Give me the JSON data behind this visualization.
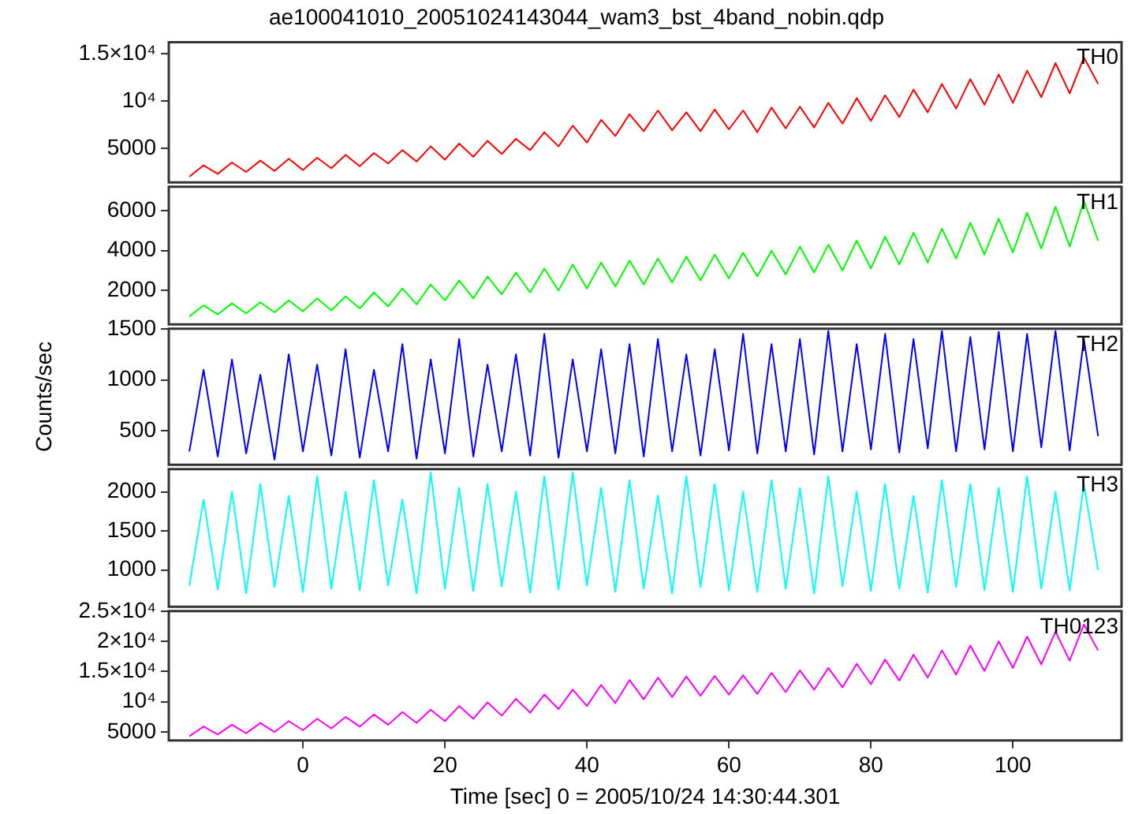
{
  "chart_data": [
    {
      "type": "line",
      "title": "ae100041010_20051024143044_wam3_bst_4band_nobin.qdp",
      "marker": "none",
      "tick_labels": "y",
      "xlim": [
        -18.9,
        115.3
      ],
      "xticks": [
        0,
        20,
        40,
        60,
        80,
        100
      ],
      "ylim": [
        1400,
        16200
      ],
      "yticks": [
        5000,
        {
          "value": 10000,
          "label": "10⁴"
        },
        {
          "value": 15000,
          "label": "1.5×10⁴"
        }
      ],
      "x": [
        -16,
        -14,
        -12,
        -10,
        -8,
        -6,
        -4,
        -2,
        0,
        2,
        4,
        6,
        8,
        10,
        12,
        14,
        16,
        18,
        20,
        22,
        24,
        26,
        28,
        30,
        32,
        34,
        36,
        38,
        40,
        42,
        44,
        46,
        48,
        50,
        52,
        54,
        56,
        58,
        60,
        62,
        64,
        66,
        68,
        70,
        72,
        74,
        76,
        78,
        80,
        82,
        84,
        86,
        88,
        90,
        92,
        94,
        96,
        98,
        100,
        102,
        104,
        106,
        108,
        110,
        112
      ],
      "series": [
        {
          "name": "TH0",
          "color": "#ff0000",
          "values": [
            2000,
            3200,
            2300,
            3500,
            2500,
            3700,
            2600,
            3900,
            2700,
            4000,
            2900,
            4300,
            3100,
            4500,
            3400,
            4800,
            3600,
            5200,
            3800,
            5500,
            4100,
            5800,
            4400,
            6000,
            4800,
            6700,
            5200,
            7400,
            5600,
            8000,
            6300,
            8600,
            6800,
            9000,
            6900,
            8800,
            6800,
            9100,
            7000,
            9000,
            6700,
            9300,
            7100,
            9400,
            7200,
            9800,
            7600,
            10300,
            7900,
            10600,
            8300,
            11200,
            8800,
            11800,
            9200,
            12300,
            9600,
            12800,
            9800,
            13200,
            10400,
            14000,
            10800,
            14600,
            11800
          ]
        }
      ]
    },
    {
      "type": "line",
      "marker": "none",
      "tick_labels": "y",
      "xlim": [
        -18.9,
        115.3
      ],
      "xticks": [
        0,
        20,
        40,
        60,
        80,
        100
      ],
      "ylim": [
        300,
        7200
      ],
      "yticks": [
        2000,
        4000,
        6000
      ],
      "x": [
        -16,
        -14,
        -12,
        -10,
        -8,
        -6,
        -4,
        -2,
        0,
        2,
        4,
        6,
        8,
        10,
        12,
        14,
        16,
        18,
        20,
        22,
        24,
        26,
        28,
        30,
        32,
        34,
        36,
        38,
        40,
        42,
        44,
        46,
        48,
        50,
        52,
        54,
        56,
        58,
        60,
        62,
        64,
        66,
        68,
        70,
        72,
        74,
        76,
        78,
        80,
        82,
        84,
        86,
        88,
        90,
        92,
        94,
        96,
        98,
        100,
        102,
        104,
        106,
        108,
        110,
        112
      ],
      "series": [
        {
          "name": "TH1",
          "color": "#00ff00",
          "values": [
            700,
            1250,
            800,
            1350,
            850,
            1400,
            900,
            1500,
            950,
            1600,
            1000,
            1700,
            1100,
            1900,
            1200,
            2100,
            1300,
            2300,
            1500,
            2500,
            1600,
            2700,
            1800,
            2900,
            1900,
            3100,
            2000,
            3300,
            2100,
            3400,
            2200,
            3500,
            2300,
            3600,
            2400,
            3700,
            2500,
            3800,
            2600,
            3900,
            2700,
            4000,
            2800,
            4200,
            2900,
            4300,
            3000,
            4500,
            3100,
            4700,
            3300,
            4900,
            3400,
            5100,
            3600,
            5400,
            3800,
            5600,
            3900,
            5900,
            4100,
            6200,
            4200,
            6500,
            4500
          ]
        }
      ]
    },
    {
      "type": "line",
      "ylabel": "Counts/sec",
      "marker": "none",
      "tick_labels": "y",
      "xlim": [
        -18.9,
        115.3
      ],
      "xticks": [
        0,
        20,
        40,
        60,
        80,
        100
      ],
      "ylim": [
        170,
        1500
      ],
      "yticks": [
        500,
        1000,
        1500
      ],
      "x": [
        -16,
        -14,
        -12,
        -10,
        -8,
        -6,
        -4,
        -2,
        0,
        2,
        4,
        6,
        8,
        10,
        12,
        14,
        16,
        18,
        20,
        22,
        24,
        26,
        28,
        30,
        32,
        34,
        36,
        38,
        40,
        42,
        44,
        46,
        48,
        50,
        52,
        54,
        56,
        58,
        60,
        62,
        64,
        66,
        68,
        70,
        72,
        74,
        76,
        78,
        80,
        82,
        84,
        86,
        88,
        90,
        92,
        94,
        96,
        98,
        100,
        102,
        104,
        106,
        108,
        110,
        112
      ],
      "series": [
        {
          "name": "TH2",
          "color": "#0000ff",
          "values": [
            300,
            1100,
            250,
            1200,
            280,
            1050,
            220,
            1250,
            300,
            1150,
            260,
            1300,
            240,
            1100,
            300,
            1350,
            230,
            1200,
            280,
            1400,
            250,
            1150,
            300,
            1250,
            260,
            1450,
            240,
            1200,
            300,
            1300,
            280,
            1350,
            250,
            1400,
            300,
            1250,
            260,
            1300,
            310,
            1450,
            280,
            1350,
            300,
            1400,
            270,
            1480,
            300,
            1350,
            320,
            1450,
            290,
            1400,
            330,
            1480,
            300,
            1420,
            320,
            1470,
            300,
            1450,
            340,
            1480,
            310,
            1400,
            450
          ]
        }
      ]
    },
    {
      "type": "line",
      "marker": "none",
      "tick_labels": "y",
      "xlim": [
        -18.9,
        115.3
      ],
      "xticks": [
        0,
        20,
        40,
        60,
        80,
        100
      ],
      "ylim": [
        530,
        2290
      ],
      "yticks": [
        1000,
        1500,
        2000
      ],
      "x": [
        -16,
        -14,
        -12,
        -10,
        -8,
        -6,
        -4,
        -2,
        0,
        2,
        4,
        6,
        8,
        10,
        12,
        14,
        16,
        18,
        20,
        22,
        24,
        26,
        28,
        30,
        32,
        34,
        36,
        38,
        40,
        42,
        44,
        46,
        48,
        50,
        52,
        54,
        56,
        58,
        60,
        62,
        64,
        66,
        68,
        70,
        72,
        74,
        76,
        78,
        80,
        82,
        84,
        86,
        88,
        90,
        92,
        94,
        96,
        98,
        100,
        102,
        104,
        106,
        108,
        110,
        112
      ],
      "series": [
        {
          "name": "TH3",
          "color": "#00ffff",
          "values": [
            800,
            1900,
            750,
            2000,
            700,
            2100,
            780,
            1950,
            720,
            2200,
            760,
            2000,
            740,
            2150,
            800,
            1900,
            700,
            2250,
            760,
            2050,
            730,
            2100,
            790,
            2000,
            710,
            2200,
            750,
            2250,
            800,
            2050,
            720,
            2150,
            760,
            1950,
            700,
            2200,
            780,
            2100,
            740,
            2000,
            720,
            2150,
            760,
            2050,
            700,
            2200,
            790,
            2000,
            730,
            2100,
            760,
            1950,
            710,
            2150,
            780,
            2100,
            740,
            2050,
            720,
            2200,
            760,
            2000,
            740,
            2100,
            1000
          ]
        }
      ]
    },
    {
      "type": "line",
      "xlabel": "Time [sec] 0 = 2005/10/24 14:30:44.301",
      "marker": "none",
      "xlim": [
        -18.9,
        115.3
      ],
      "xticks": [
        0,
        20,
        40,
        60,
        80,
        100
      ],
      "ylim": [
        3600,
        25000
      ],
      "yticks": [
        5000,
        {
          "value": 10000,
          "label": "10⁴"
        },
        {
          "value": 15000,
          "label": "1.5×10⁴"
        },
        {
          "value": 20000,
          "label": "2×10⁴"
        },
        {
          "value": 25000,
          "label": "2.5×10⁴"
        }
      ],
      "x": [
        -16,
        -14,
        -12,
        -10,
        -8,
        -6,
        -4,
        -2,
        0,
        2,
        4,
        6,
        8,
        10,
        12,
        14,
        16,
        18,
        20,
        22,
        24,
        26,
        28,
        30,
        32,
        34,
        36,
        38,
        40,
        42,
        44,
        46,
        48,
        50,
        52,
        54,
        56,
        58,
        60,
        62,
        64,
        66,
        68,
        70,
        72,
        74,
        76,
        78,
        80,
        82,
        84,
        86,
        88,
        90,
        92,
        94,
        96,
        98,
        100,
        102,
        104,
        106,
        108,
        110,
        112
      ],
      "series": [
        {
          "name": "TH0123",
          "color": "#ff00ff",
          "values": [
            4300,
            5900,
            4600,
            6200,
            4800,
            6500,
            5000,
            6800,
            5300,
            7200,
            5600,
            7500,
            5900,
            7900,
            6200,
            8300,
            6500,
            8700,
            6800,
            9300,
            7200,
            9900,
            7700,
            10500,
            8200,
            11200,
            8800,
            12000,
            9300,
            12800,
            9800,
            13600,
            10400,
            14000,
            10800,
            14200,
            11000,
            14300,
            11200,
            14400,
            11300,
            14800,
            11600,
            15200,
            12000,
            15600,
            12400,
            16300,
            12900,
            17000,
            13500,
            17800,
            14000,
            18500,
            14500,
            19300,
            15100,
            20000,
            15600,
            20800,
            16200,
            21600,
            16800,
            22800,
            18500
          ]
        }
      ]
    }
  ]
}
